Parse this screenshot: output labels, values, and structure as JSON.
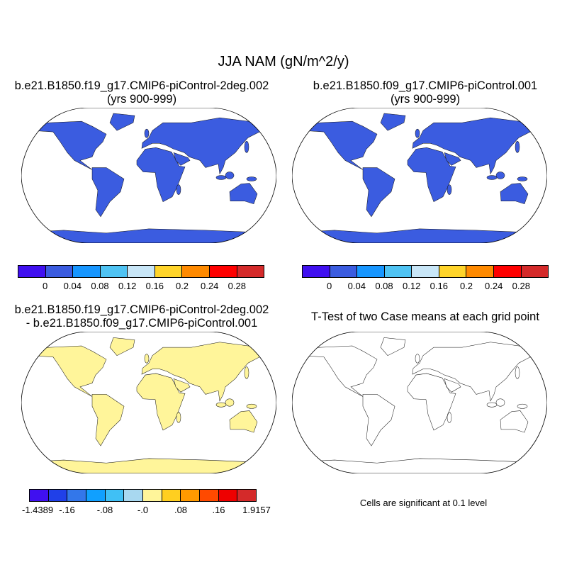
{
  "title": "JJA NAM (gN/m^2/y)",
  "panels": {
    "top_left": {
      "title_line1": "b.e21.B1850.f19_g17.CMIP6-piControl-2deg.002",
      "title_line2": "(yrs 900-999)"
    },
    "top_right": {
      "title_line1": "b.e21.B1850.f09_g17.CMIP6-piControl.001",
      "title_line2": "(yrs 900-999)"
    },
    "bottom_left": {
      "title_line1": "b.e21.B1850.f19_g17.CMIP6-piControl-2deg.002",
      "title_line2": "- b.e21.B1850.f09_g17.CMIP6-piControl.001"
    },
    "bottom_right": {
      "title_line1": "T-Test of two Case means at each grid point",
      "note": "Cells are significant at 0.1 level"
    }
  },
  "colorbar_abs": {
    "labels": [
      "0",
      "0.04",
      "0.08",
      "0.12",
      "0.16",
      "0.2",
      "0.24",
      "0.28"
    ],
    "colors": [
      "#4010f0",
      "#3b5ce0",
      "#1796ff",
      "#4fc3f3",
      "#c8e6f7",
      "#ffd42a",
      "#ff8a00",
      "#ff0000",
      "#d42a2a"
    ]
  },
  "colorbar_diff": {
    "labels": [
      "-1.4389",
      "-.16",
      "-.08",
      "-.0",
      ".08",
      ".16",
      "1.9157"
    ],
    "colors": [
      "#4010f0",
      "#2040e8",
      "#3377ea",
      "#10a0ff",
      "#40c0f5",
      "#a8d8f0",
      "#fff59a",
      "#ffcf20",
      "#ff9a00",
      "#ff4a00",
      "#ee0000",
      "#d42a2a"
    ]
  },
  "significance_color": "#ff0000"
}
